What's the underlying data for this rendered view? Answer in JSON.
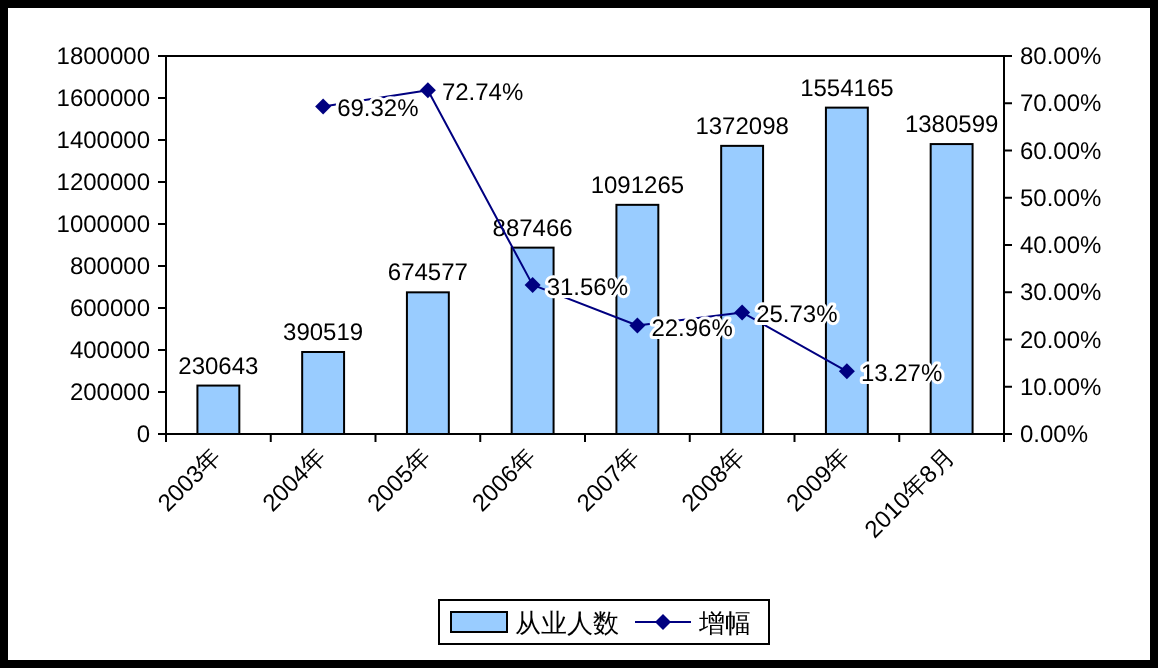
{
  "chart_data": {
    "type": "bar",
    "categories": [
      "2003年",
      "2004年",
      "2005年",
      "2006年",
      "2007年",
      "2008年",
      "2009年",
      "2010年8月"
    ],
    "series": [
      {
        "name": "从业人数",
        "color": "#99ccff",
        "values": [
          230643,
          390519,
          674577,
          887466,
          1091265,
          1372098,
          1554165,
          1380599
        ],
        "value_labels": [
          "230643",
          "390519",
          "674577",
          "887466",
          "1091265",
          "1372098",
          "1554165",
          "1380599"
        ]
      },
      {
        "name": "增幅",
        "type": "line",
        "axis": "y2",
        "color": "#000080",
        "marker": "diamond",
        "line_style": "solid",
        "values": [
          null,
          69.32,
          72.74,
          31.56,
          22.96,
          25.73,
          13.27,
          null
        ],
        "value_labels": [
          null,
          "69.32%",
          "72.74%",
          "31.56%",
          "22.96%",
          "25.73%",
          "13.27%",
          null
        ]
      }
    ],
    "ylim": [
      0,
      1800000
    ],
    "yticks": [
      0,
      200000,
      400000,
      600000,
      800000,
      1000000,
      1200000,
      1400000,
      1600000,
      1800000
    ],
    "y2lim": [
      0,
      80
    ],
    "y2ticks": [
      {
        "value": 0,
        "label": "0.00%"
      },
      {
        "value": 10,
        "label": "10.00%"
      },
      {
        "value": 20,
        "label": "20.00%"
      },
      {
        "value": 30,
        "label": "30.00%"
      },
      {
        "value": 40,
        "label": "40.00%"
      },
      {
        "value": 50,
        "label": "50.00%"
      },
      {
        "value": 60,
        "label": "60.00%"
      },
      {
        "value": 70,
        "label": "70.00%"
      },
      {
        "value": 80,
        "label": "80.00%"
      }
    ],
    "grid": false,
    "legend": "bottom"
  }
}
